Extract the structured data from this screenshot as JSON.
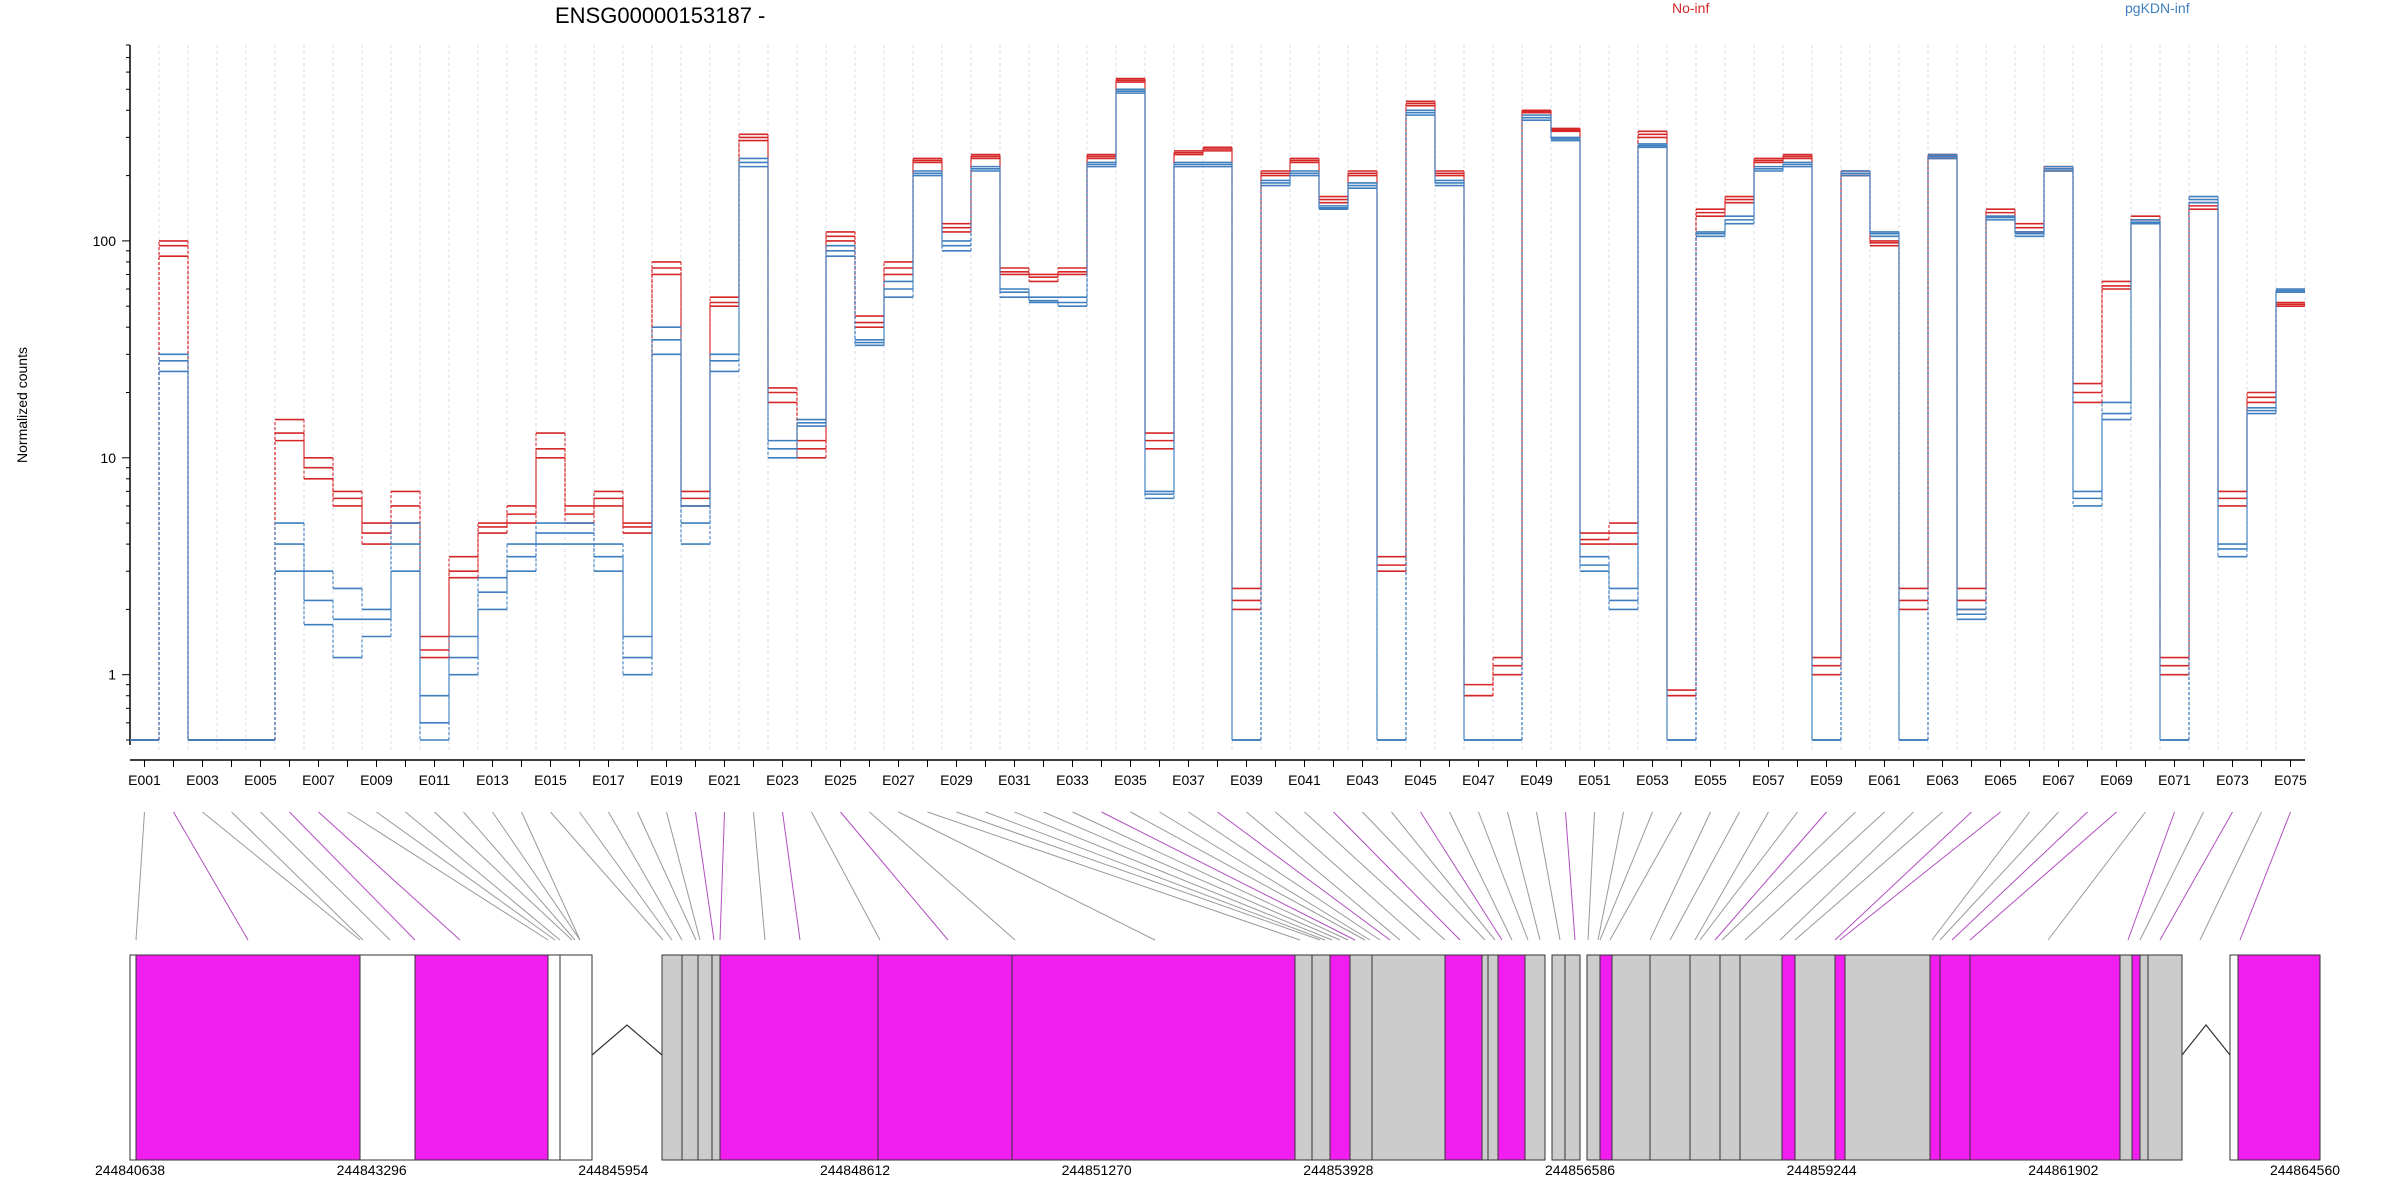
{
  "chart_data": {
    "type": "line",
    "title": "ENSG00000153187 -",
    "ylabel": "Normalized counts",
    "yscale": "log",
    "ylim": [
      0.5,
      800
    ],
    "yticks": [
      1,
      10,
      100
    ],
    "ytick_labels": [
      "1",
      "10",
      "100"
    ],
    "grid": "vertical dashed lines at each exon",
    "legend": [
      {
        "name": "No-inf",
        "color": "#d62728",
        "position": "top-center"
      },
      {
        "name": "pgKDN-inf",
        "color": "#3f7fbf",
        "position": "top-right"
      }
    ],
    "exon_labels_shown": [
      "E001",
      "E003",
      "E005",
      "E007",
      "E009",
      "E011",
      "E013",
      "E015",
      "E017",
      "E019",
      "E021",
      "E023",
      "E025",
      "E027",
      "E029",
      "E031",
      "E033",
      "E035",
      "E037",
      "E039",
      "E041",
      "E043",
      "E045",
      "E047",
      "E049",
      "E051",
      "E053",
      "E055",
      "E057",
      "E059",
      "E061",
      "E063",
      "E065",
      "E067",
      "E069",
      "E071",
      "E073",
      "E075"
    ],
    "exon_count": 75,
    "series": [
      {
        "name": "No-inf",
        "color": "#d62728",
        "values": [
          0.5,
          95,
          0.5,
          0.5,
          0.5,
          15,
          10,
          7,
          5,
          7,
          1.5,
          3.5,
          5,
          6,
          13,
          6,
          7,
          5,
          80,
          7,
          55,
          300,
          20,
          12,
          110,
          45,
          80,
          240,
          120,
          250,
          75,
          70,
          75,
          250,
          560,
          12,
          260,
          270,
          2.5,
          210,
          240,
          160,
          210,
          3.5,
          440,
          210,
          0.8,
          1.2,
          400,
          330,
          4.5,
          5,
          320,
          0.8,
          140,
          160,
          240,
          250,
          1.2,
          210,
          100,
          2.5,
          250,
          2.5,
          140,
          120,
          220,
          22,
          65,
          130,
          1.2,
          150,
          7,
          20,
          52
        ]
      },
      {
        "name": "No-inf",
        "color": "#d62728",
        "values": [
          0.5,
          85,
          0.5,
          0.5,
          0.5,
          12,
          8,
          6,
          4,
          5,
          1.2,
          2.8,
          4.5,
          5,
          10,
          5,
          6,
          4.5,
          70,
          6,
          50,
          290,
          18,
          10,
          100,
          40,
          70,
          230,
          110,
          240,
          70,
          65,
          70,
          240,
          540,
          11,
          250,
          260,
          2,
          200,
          230,
          150,
          200,
          3,
          420,
          200,
          0.8,
          1,
          390,
          320,
          4,
          4,
          300,
          0.8,
          130,
          150,
          230,
          240,
          1,
          200,
          95,
          2,
          240,
          2,
          130,
          110,
          210,
          18,
          60,
          120,
          1,
          140,
          6,
          18,
          50
        ]
      },
      {
        "name": "No-inf",
        "color": "#d62728",
        "values": [
          0.5,
          100,
          0.5,
          0.5,
          0.5,
          13,
          9,
          6.5,
          4.5,
          6,
          1.3,
          3,
          4.8,
          5.5,
          11,
          5.5,
          6.5,
          4.8,
          75,
          6.5,
          52,
          310,
          21,
          11,
          105,
          42,
          75,
          235,
          115,
          245,
          72,
          68,
          72,
          245,
          550,
          13,
          255,
          265,
          2.2,
          205,
          235,
          155,
          205,
          3.2,
          430,
          205,
          0.9,
          1.1,
          395,
          325,
          4.2,
          4.5,
          310,
          0.85,
          135,
          155,
          235,
          245,
          1.1,
          205,
          98,
          2.2,
          245,
          2.2,
          135,
          115,
          215,
          20,
          62,
          125,
          1.1,
          145,
          6.5,
          19,
          51
        ]
      },
      {
        "name": "pgKDN-inf",
        "color": "#3f7fbf",
        "values": [
          0.5,
          30,
          0.5,
          0.5,
          0.5,
          5,
          3,
          2.5,
          2,
          5,
          0.8,
          1.5,
          2.8,
          4,
          5,
          5,
          4,
          1.5,
          40,
          6,
          30,
          240,
          12,
          15,
          95,
          35,
          65,
          210,
          100,
          220,
          60,
          55,
          55,
          230,
          500,
          7,
          230,
          230,
          0.5,
          190,
          210,
          145,
          185,
          0.5,
          400,
          190,
          0.5,
          0.5,
          380,
          300,
          3.5,
          2.5,
          280,
          0.5,
          110,
          130,
          220,
          230,
          0.5,
          210,
          110,
          0.5,
          250,
          2,
          130,
          110,
          220,
          7,
          18,
          125,
          0.5,
          160,
          4,
          17,
          60
        ]
      },
      {
        "name": "pgKDN-inf",
        "color": "#3f7fbf",
        "values": [
          0.5,
          25,
          0.5,
          0.5,
          0.5,
          3,
          1.7,
          1.2,
          1.5,
          3,
          0.5,
          1,
          2,
          3,
          4,
          4,
          3,
          1,
          30,
          4,
          25,
          220,
          10,
          14,
          85,
          33,
          55,
          200,
          90,
          210,
          55,
          52,
          50,
          220,
          480,
          6.5,
          220,
          220,
          0.5,
          180,
          200,
          140,
          175,
          0.5,
          380,
          180,
          0.5,
          0.5,
          360,
          290,
          3,
          2,
          270,
          0.5,
          105,
          120,
          210,
          220,
          0.5,
          200,
          105,
          0.5,
          240,
          1.8,
          125,
          105,
          210,
          6,
          15,
          120,
          0.5,
          150,
          3.5,
          16,
          58
        ]
      },
      {
        "name": "pgKDN-inf",
        "color": "#3f7fbf",
        "values": [
          0.5,
          28,
          0.5,
          0.5,
          0.5,
          4,
          2.2,
          1.8,
          1.8,
          4,
          0.6,
          1.2,
          2.4,
          3.5,
          4.5,
          4.5,
          3.5,
          1.2,
          35,
          5,
          28,
          230,
          11,
          14.5,
          90,
          34,
          60,
          205,
          95,
          215,
          58,
          53,
          52,
          225,
          490,
          6.8,
          225,
          225,
          0.5,
          185,
          205,
          142,
          180,
          0.5,
          390,
          185,
          0.5,
          0.5,
          370,
          295,
          3.2,
          2.2,
          275,
          0.5,
          108,
          125,
          215,
          225,
          0.5,
          205,
          108,
          0.5,
          245,
          1.9,
          128,
          108,
          215,
          6.5,
          16,
          122,
          0.5,
          155,
          3.8,
          16.5,
          59
        ]
      }
    ],
    "gene_coordinates": [
      "244840638",
      "244843296",
      "244845954",
      "244848612",
      "244851270",
      "244853928",
      "244856586",
      "244859244",
      "244861902",
      "244864560"
    ]
  }
}
